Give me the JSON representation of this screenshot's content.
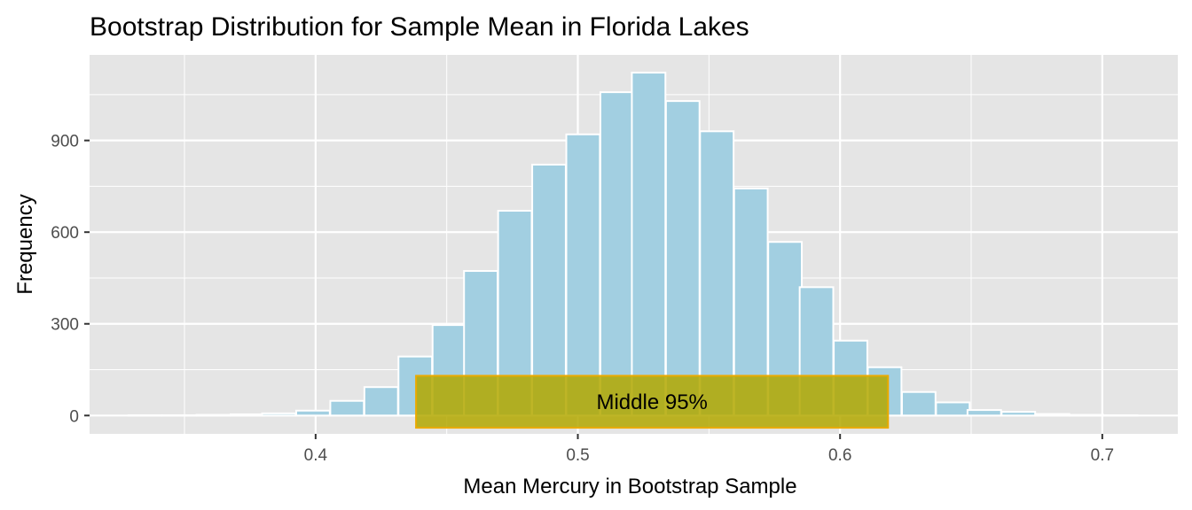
{
  "chart_data": {
    "type": "bar",
    "title": "Bootstrap Distribution for Sample Mean in Florida Lakes",
    "xlabel": "Mean Mercury in Bootstrap Sample",
    "ylabel": "Frequency",
    "xlim": [
      0.3138,
      0.7288
    ],
    "ylim": [
      -60,
      1180
    ],
    "x_ticks": [
      0.4,
      0.5,
      0.6,
      0.7
    ],
    "x_tick_labels": [
      "0.4",
      "0.5",
      "0.6",
      "0.7"
    ],
    "y_ticks": [
      0,
      300,
      600,
      900
    ],
    "y_tick_labels": [
      "0",
      "300",
      "600",
      "900"
    ],
    "grid": true,
    "legend": "none",
    "bin_width": 0.0128,
    "bins": [
      {
        "x": 0.335,
        "count": 1
      },
      {
        "x": 0.348,
        "count": 1
      },
      {
        "x": 0.361,
        "count": 2
      },
      {
        "x": 0.374,
        "count": 4
      },
      {
        "x": 0.386,
        "count": 7
      },
      {
        "x": 0.399,
        "count": 16
      },
      {
        "x": 0.412,
        "count": 48
      },
      {
        "x": 0.425,
        "count": 93
      },
      {
        "x": 0.438,
        "count": 193
      },
      {
        "x": 0.451,
        "count": 296
      },
      {
        "x": 0.463,
        "count": 473
      },
      {
        "x": 0.476,
        "count": 670
      },
      {
        "x": 0.489,
        "count": 821
      },
      {
        "x": 0.502,
        "count": 920
      },
      {
        "x": 0.515,
        "count": 1058
      },
      {
        "x": 0.527,
        "count": 1122
      },
      {
        "x": 0.54,
        "count": 1029
      },
      {
        "x": 0.553,
        "count": 930
      },
      {
        "x": 0.566,
        "count": 743
      },
      {
        "x": 0.579,
        "count": 568
      },
      {
        "x": 0.591,
        "count": 420
      },
      {
        "x": 0.604,
        "count": 245
      },
      {
        "x": 0.617,
        "count": 158
      },
      {
        "x": 0.63,
        "count": 77
      },
      {
        "x": 0.643,
        "count": 43
      },
      {
        "x": 0.655,
        "count": 18
      },
      {
        "x": 0.668,
        "count": 12
      },
      {
        "x": 0.681,
        "count": 5
      },
      {
        "x": 0.694,
        "count": 2
      },
      {
        "x": 0.707,
        "count": 1
      }
    ],
    "annotation": {
      "label": "Middle 95%",
      "xmin": 0.4383,
      "xmax": 0.6183,
      "ymin": -40,
      "ymax": 130
    },
    "colors": {
      "panel": "#e5e5e5",
      "grid": "#ffffff",
      "bar_fill": "#a2cfe1",
      "bar_stroke": "#ffffff",
      "highlight_fill": "#b3a800",
      "highlight_stroke": "#ebaa00"
    }
  }
}
